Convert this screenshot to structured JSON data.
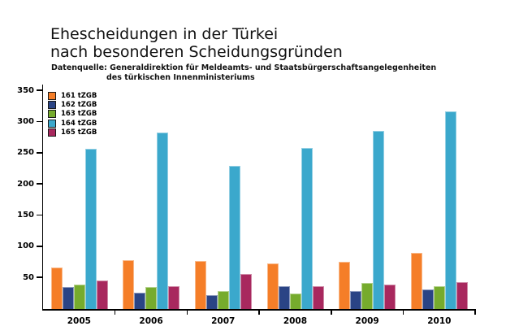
{
  "title": {
    "line1": "Ehescheidungen in der Türkei",
    "line2": "nach besonderen Scheidungsgründen"
  },
  "subtitle": {
    "line1": "Datenquelle: Generaldirektion für Meldeamts- und Staatsbürgerschaftsangelegenheiten",
    "line2": "des türkischen Innenministeriums"
  },
  "chart_data": {
    "type": "bar",
    "title": "Ehescheidungen in der Türkei nach besonderen Scheidungsgründen",
    "xlabel": "",
    "ylabel": "",
    "categories": [
      "2005",
      "2006",
      "2007",
      "2008",
      "2009",
      "2010"
    ],
    "series": [
      {
        "name": "161 tZGB",
        "color": "#f57e28",
        "values": [
          66,
          77,
          76,
          72,
          75,
          89
        ]
      },
      {
        "name": "162 tZGB",
        "color": "#2a4485",
        "values": [
          35,
          25,
          22,
          36,
          28,
          31
        ]
      },
      {
        "name": "163 tZGB",
        "color": "#76ab2d",
        "values": [
          38,
          35,
          28,
          24,
          41,
          36
        ]
      },
      {
        "name": "164 tZGB",
        "color": "#3ba8cc",
        "values": [
          256,
          282,
          229,
          257,
          285,
          316
        ]
      },
      {
        "name": "165 tZGB",
        "color": "#a8285e",
        "values": [
          45,
          36,
          55,
          36,
          38,
          42
        ]
      }
    ],
    "ylim": [
      0,
      359
    ],
    "yticks": [
      50,
      100,
      150,
      200,
      250,
      300,
      350
    ],
    "grid": false,
    "legend_position": "top-left",
    "axis_color": "#000000",
    "background_color": "#ffffff"
  }
}
